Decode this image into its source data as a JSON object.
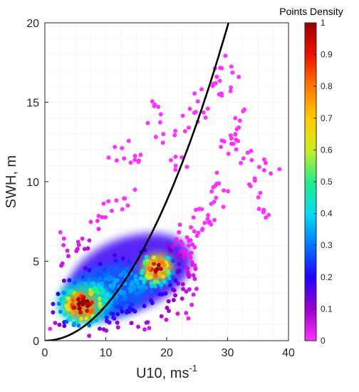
{
  "chart_data": {
    "type": "scatter",
    "title": "",
    "xlabel": "U10, ms",
    "xlabel_superscript": "-1",
    "ylabel": "SWH, m",
    "xlim": [
      0,
      40
    ],
    "ylim": [
      0,
      20
    ],
    "x_ticks": [
      "0",
      "10",
      "20",
      "30",
      "40"
    ],
    "y_ticks": [
      "0",
      "5",
      "10",
      "15",
      "20"
    ],
    "grid": true,
    "colorbar": {
      "title": "Points Density",
      "range": [
        0,
        1
      ],
      "ticks": [
        "0",
        "0.1",
        "0.2",
        "0.3",
        "0.4",
        "0.5",
        "0.6",
        "0.7",
        "0.8",
        "0.9",
        "1"
      ],
      "colormap": [
        "#ff33ff",
        "#9900cc",
        "#2200ff",
        "#0077ff",
        "#00ddee",
        "#22ee88",
        "#ccee22",
        "#ffcc00",
        "#ff7700",
        "#ee1100",
        "#990000"
      ]
    },
    "density_peaks": [
      {
        "x": 6,
        "y": 2.2,
        "density": 1.0
      },
      {
        "x": 18.5,
        "y": 4.6,
        "density": 0.85
      }
    ],
    "series": [
      {
        "type": "scatter",
        "colored_by": "density",
        "points_estimated": [
          [
            2,
            1.5
          ],
          [
            3,
            2.5
          ],
          [
            4,
            2
          ],
          [
            5,
            3
          ],
          [
            6,
            2
          ],
          [
            7,
            2.5
          ],
          [
            8,
            2
          ],
          [
            9,
            3
          ],
          [
            10,
            2.5
          ],
          [
            11,
            3
          ],
          [
            12,
            3.5
          ],
          [
            13,
            3
          ],
          [
            14,
            4
          ],
          [
            15,
            3.5
          ],
          [
            16,
            4.5
          ],
          [
            17,
            4
          ],
          [
            18,
            4.6
          ],
          [
            19,
            4.8
          ],
          [
            20,
            4
          ],
          [
            21,
            5
          ],
          [
            22,
            6
          ],
          [
            23,
            6.5
          ],
          [
            24,
            6
          ],
          [
            25,
            7
          ],
          [
            26,
            8
          ],
          [
            27,
            7.5
          ],
          [
            28,
            9
          ],
          [
            29,
            10
          ],
          [
            30,
            12
          ],
          [
            31,
            13
          ],
          [
            32,
            14
          ],
          [
            33,
            12
          ],
          [
            35,
            10
          ],
          [
            36,
            8
          ],
          [
            37,
            11
          ],
          [
            30,
            16
          ],
          [
            29,
            17
          ],
          [
            27,
            16
          ],
          [
            25,
            15
          ],
          [
            23,
            14
          ],
          [
            20,
            13
          ],
          [
            18,
            14.5
          ],
          [
            15,
            11
          ],
          [
            13,
            9
          ],
          [
            10,
            8
          ],
          [
            8,
            7
          ],
          [
            5,
            6
          ],
          [
            3,
            5.5
          ],
          [
            12,
            12
          ],
          [
            22,
            11
          ]
        ]
      },
      {
        "type": "line",
        "name": "",
        "color": "#000000",
        "x": [
          0,
          5,
          10,
          15,
          20,
          25,
          30,
          30.8
        ],
        "y": [
          0,
          0.55,
          2.2,
          4.95,
          8.8,
          13.75,
          19.8,
          20.0
        ]
      }
    ]
  }
}
